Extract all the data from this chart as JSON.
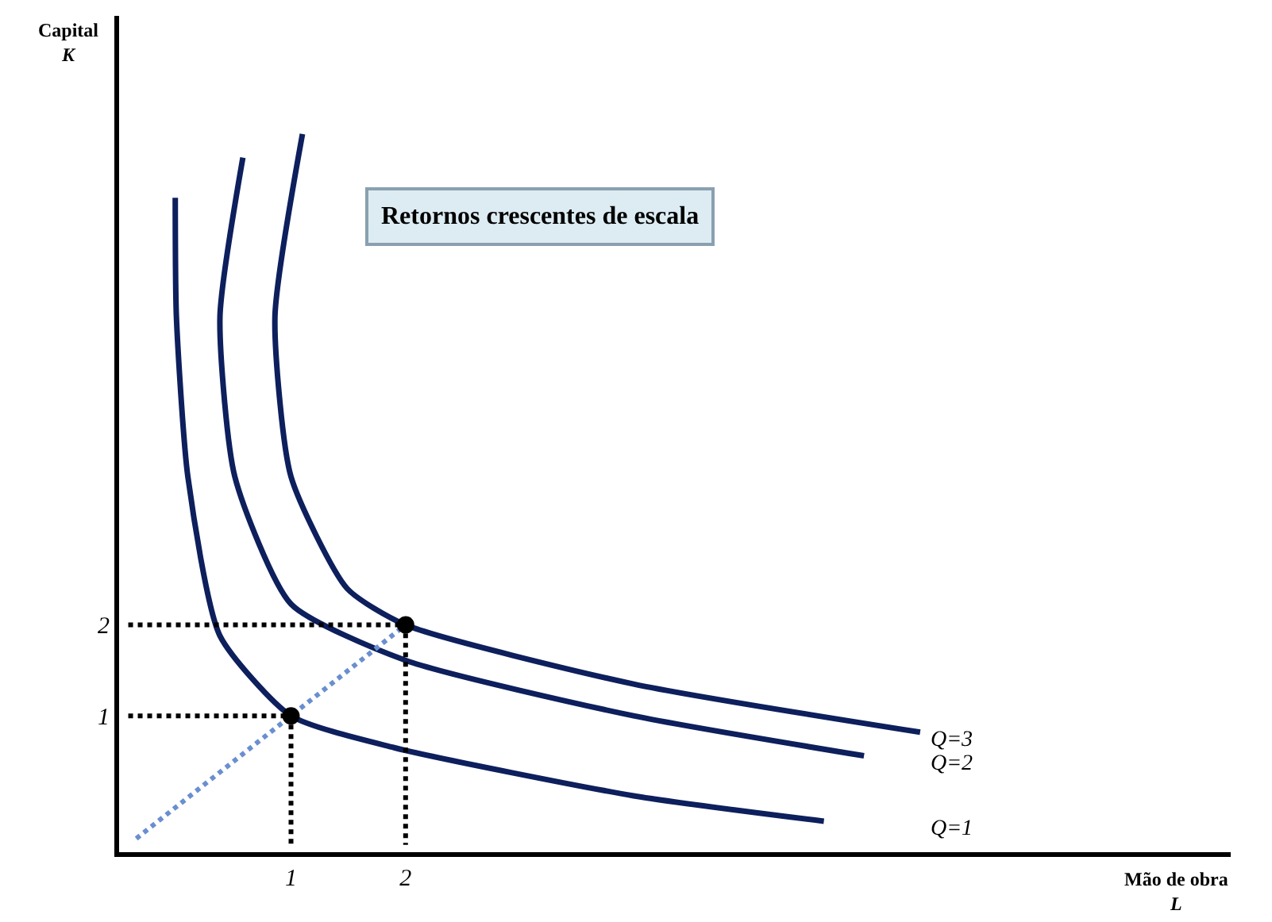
{
  "chart_data": {
    "type": "line",
    "title": "Retornos crescentes de escala",
    "xlabel": "Mão de obra\nL",
    "ylabel": "Capital\nK",
    "xlim": [
      -0.5,
      9.2
    ],
    "ylim": [
      -0.5,
      8.7
    ],
    "xticks": [
      1,
      2
    ],
    "yticks": [
      1,
      2
    ],
    "legend": false,
    "series": [
      {
        "name": "Q=1",
        "color": "#0d1f5c",
        "line_style": "solid",
        "marker": "none",
        "x": [
          -0.01,
          0,
          0.1,
          0.38,
          1,
          1.9,
          3.99,
          5.65
        ],
        "values": [
          6.7,
          5.39,
          3.63,
          1.88,
          1,
          0.65,
          0.12,
          -0.16
        ]
      },
      {
        "name": "Q=2",
        "color": "#0d1f5c",
        "line_style": "solid",
        "marker": "none",
        "x": [
          0.58,
          0.38,
          0.51,
          1,
          2,
          3.99,
          6
        ],
        "values": [
          7.14,
          5.39,
          3.63,
          2.23,
          1.61,
          1,
          0.56
        ]
      },
      {
        "name": "Q=3",
        "color": "#0d1f5c",
        "line_style": "solid",
        "marker": "none",
        "x": [
          1.1,
          0.86,
          1,
          1.49,
          2,
          3.99,
          6.49
        ],
        "values": [
          7.4,
          5.39,
          3.63,
          2.4,
          2,
          1.35,
          0.82
        ]
      },
      {
        "color": "#000000",
        "line_style": "dotted",
        "marker": "none",
        "x": [
          -0.42,
          1,
          1
        ],
        "values": [
          1,
          1,
          -0.42
        ]
      },
      {
        "color": "#000000",
        "line_style": "dotted",
        "marker": "none",
        "x": [
          -0.42,
          2,
          2
        ],
        "values": [
          2,
          2,
          -0.42
        ]
      },
      {
        "color": "#6a8fd0",
        "line_style": "dotted",
        "marker": "none",
        "x": [
          -0.35,
          2
        ],
        "values": [
          -0.35,
          2
        ]
      },
      {
        "type": "scatter",
        "color": "#000000",
        "marker": "circle",
        "x": [
          1,
          2
        ],
        "values": [
          1,
          2
        ]
      }
    ]
  }
}
